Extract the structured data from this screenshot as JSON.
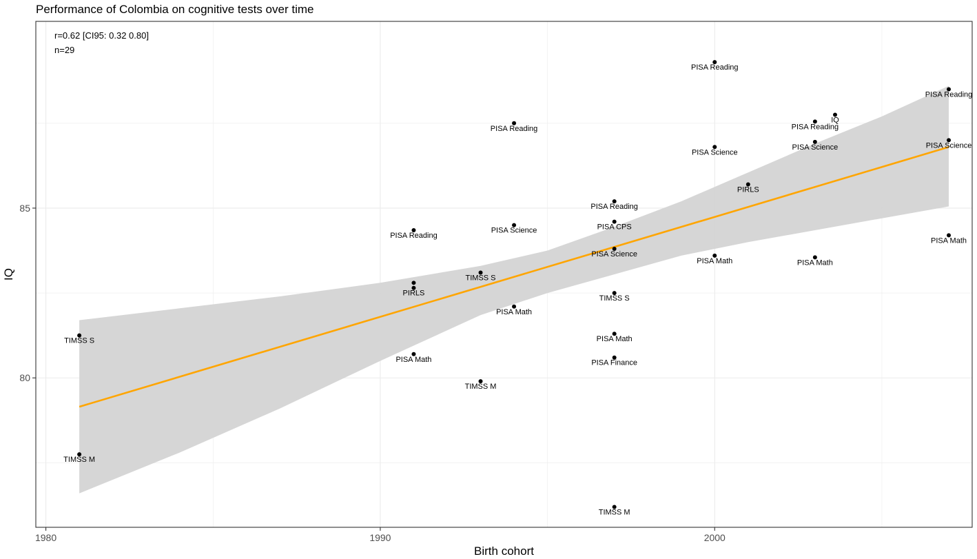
{
  "chart_data": {
    "type": "scatter",
    "title": "Performance of Colombia on cognitive tests over time",
    "xlabel": "Birth cohort",
    "ylabel": "IQ",
    "xlim": [
      1979.7,
      2007.7
    ],
    "ylim": [
      75.6,
      90.5
    ],
    "x_ticks": [
      1980,
      1990,
      2000
    ],
    "y_ticks": [
      80,
      85
    ],
    "x_minor": [
      1985,
      1995,
      2005
    ],
    "y_minor": [
      77.5,
      82.5,
      87.5
    ],
    "grid": true,
    "annotations": [
      "r=0.62 [CI95: 0.32 0.80]",
      "n=29"
    ],
    "colors": {
      "fit_line": "#FFA500",
      "ci_band": "#d3d3d3",
      "points": "#000000",
      "grid": "#ebebeb"
    },
    "points": [
      {
        "x": 1981,
        "y": 81.25,
        "label": "TIMSS S"
      },
      {
        "x": 1981,
        "y": 77.75,
        "label": "TIMSS M"
      },
      {
        "x": 1991,
        "y": 84.35,
        "label": "PISA Reading"
      },
      {
        "x": 1991,
        "y": 82.8,
        "label": ""
      },
      {
        "x": 1991,
        "y": 82.65,
        "label": "PIRLS"
      },
      {
        "x": 1991,
        "y": 80.7,
        "label": "PISA Math"
      },
      {
        "x": 1993,
        "y": 83.1,
        "label": "TIMSS S"
      },
      {
        "x": 1993,
        "y": 79.9,
        "label": "TIMSS M"
      },
      {
        "x": 1994,
        "y": 87.5,
        "label": "PISA Reading"
      },
      {
        "x": 1994,
        "y": 84.5,
        "label": "PISA Science"
      },
      {
        "x": 1994,
        "y": 82.1,
        "label": "PISA Math"
      },
      {
        "x": 1997,
        "y": 85.2,
        "label": "PISA Reading"
      },
      {
        "x": 1997,
        "y": 84.6,
        "label": "PISA CPS"
      },
      {
        "x": 1997,
        "y": 83.8,
        "label": "PISA Science"
      },
      {
        "x": 1997,
        "y": 82.5,
        "label": "TIMSS S"
      },
      {
        "x": 1997,
        "y": 81.3,
        "label": "PISA Math"
      },
      {
        "x": 1997,
        "y": 80.6,
        "label": "PISA Finance"
      },
      {
        "x": 1997,
        "y": 76.2,
        "label": "TIMSS M"
      },
      {
        "x": 2000,
        "y": 89.3,
        "label": "PISA Reading"
      },
      {
        "x": 2000,
        "y": 86.8,
        "label": "PISA Science"
      },
      {
        "x": 2000,
        "y": 83.6,
        "label": "PISA Math"
      },
      {
        "x": 2001,
        "y": 85.7,
        "label": "PIRLS"
      },
      {
        "x": 2003,
        "y": 87.55,
        "label": "PISA Reading"
      },
      {
        "x": 2003,
        "y": 86.95,
        "label": "PISA Science"
      },
      {
        "x": 2003,
        "y": 83.55,
        "label": "PISA Math"
      },
      {
        "x": 2003.6,
        "y": 87.75,
        "label": "IQ"
      },
      {
        "x": 2007,
        "y": 88.5,
        "label": "PISA Reading"
      },
      {
        "x": 2007,
        "y": 87.0,
        "label": "PISA Science"
      },
      {
        "x": 2007,
        "y": 84.2,
        "label": "PISA Math"
      }
    ],
    "fit": {
      "x": [
        1981,
        2007
      ],
      "y": [
        79.15,
        86.8
      ]
    },
    "ci_band": {
      "x": [
        1981,
        1984,
        1987,
        1990,
        1993,
        1995,
        1997,
        1999,
        2001,
        2003,
        2005,
        2007
      ],
      "lower": [
        76.6,
        77.8,
        79.1,
        80.5,
        81.85,
        82.5,
        83.05,
        83.6,
        84.0,
        84.35,
        84.7,
        85.05
      ],
      "upper": [
        81.7,
        82.05,
        82.4,
        82.8,
        83.3,
        83.75,
        84.45,
        85.2,
        86.05,
        86.9,
        87.7,
        88.6
      ]
    }
  }
}
